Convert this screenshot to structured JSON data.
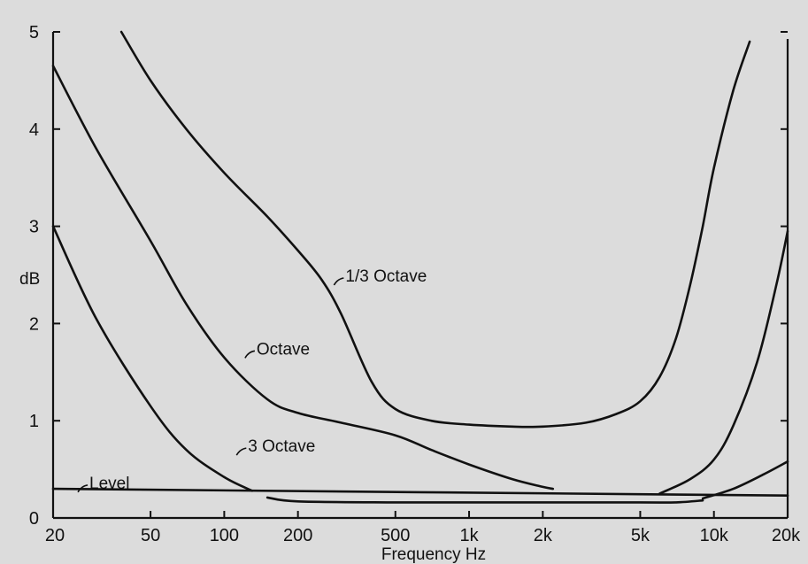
{
  "chart_data": {
    "type": "line",
    "title": "",
    "xlabel": "Frequency Hz",
    "ylabel": "dB",
    "x_scale": "log",
    "xlim": [
      20,
      20000
    ],
    "ylim": [
      0,
      5
    ],
    "grid": false,
    "x_ticks": [
      20,
      50,
      100,
      200,
      500,
      1000,
      2000,
      5000,
      10000,
      20000
    ],
    "x_tick_labels": [
      "20",
      "50",
      "100",
      "200",
      "500",
      "1k",
      "2k",
      "5k",
      "10k",
      "20k"
    ],
    "y_ticks": [
      0,
      1,
      2,
      3,
      4,
      5
    ],
    "y_tick_labels": [
      "0",
      "1",
      "2",
      "3",
      "4",
      "5"
    ],
    "series": [
      {
        "name": "1/3 Octave",
        "x": [
          38,
          50,
          70,
          100,
          150,
          200,
          250,
          300,
          400,
          500,
          700,
          1000,
          1500,
          2000,
          3000,
          4000,
          5000,
          6000,
          7000,
          8000,
          9000,
          10000,
          12000,
          14000
        ],
        "y": [
          5.0,
          4.5,
          4.0,
          3.55,
          3.1,
          2.75,
          2.45,
          2.1,
          1.4,
          1.12,
          1.0,
          0.96,
          0.94,
          0.94,
          0.98,
          1.07,
          1.2,
          1.45,
          1.85,
          2.4,
          3.0,
          3.6,
          4.4,
          4.9
        ]
      },
      {
        "name": "Octave",
        "x": [
          20,
          30,
          50,
          70,
          100,
          150,
          200,
          300,
          500,
          700,
          1000,
          1500,
          2000,
          2200
        ],
        "y": [
          4.65,
          3.8,
          2.85,
          2.2,
          1.65,
          1.22,
          1.08,
          0.98,
          0.85,
          0.7,
          0.55,
          0.4,
          0.32,
          0.3
        ]
      },
      {
        "name": "3 Octave",
        "x": [
          20,
          30,
          50,
          70,
          100,
          130
        ],
        "y": [
          3.0,
          2.05,
          1.15,
          0.7,
          0.42,
          0.28
        ]
      },
      {
        "name": "Level",
        "x": [
          20,
          20000
        ],
        "y": [
          0.3,
          0.23
        ]
      },
      {
        "name": "",
        "x": [
          6000,
          8000,
          10000,
          12000,
          15000,
          18000,
          20000
        ],
        "y": [
          0.25,
          0.4,
          0.6,
          0.95,
          1.6,
          2.4,
          2.95
        ]
      },
      {
        "name": "",
        "x": [
          9000,
          12000,
          16000,
          20000
        ],
        "y": [
          0.2,
          0.3,
          0.45,
          0.58
        ]
      },
      {
        "name": "",
        "x": [
          150,
          200,
          500,
          1000,
          2000,
          5000,
          7000,
          9000
        ],
        "y": [
          0.21,
          0.17,
          0.16,
          0.16,
          0.16,
          0.16,
          0.16,
          0.18
        ]
      }
    ],
    "annotations": [
      {
        "text": "1/3 Octave",
        "x": 300,
        "y": 2.45
      },
      {
        "text": "Octave",
        "x": 130,
        "y": 1.7
      },
      {
        "text": "3 Octave",
        "x": 120,
        "y": 0.7
      },
      {
        "text": "Level",
        "x": 27,
        "y": 0.32
      }
    ]
  }
}
